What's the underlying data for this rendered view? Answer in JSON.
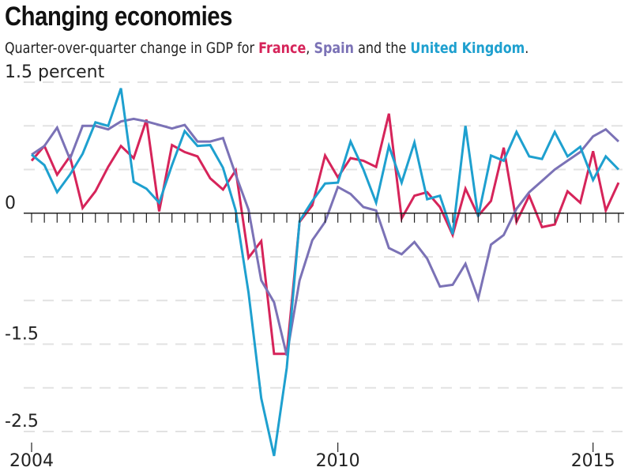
{
  "title": "Changing economies",
  "subtitle": {
    "prefix": "Quarter-over-quarter change in GDP for ",
    "france": "France",
    "sep1": ", ",
    "spain": "Spain",
    "mid": " and the ",
    "uk": "United Kingdom",
    "suffix": "."
  },
  "colors": {
    "france": "#d6245a",
    "spain": "#7b72b6",
    "uk": "#1ea0cf",
    "grid": "#e2e2e2",
    "axis": "#222222"
  },
  "chart_data": {
    "type": "line",
    "title": "Changing economies",
    "ylabel": "percent",
    "ylim": [
      -2.5,
      1.5
    ],
    "yticks": [
      {
        "value": 1.5,
        "label": "1.5 percent"
      },
      {
        "value": 0,
        "label": "0"
      },
      {
        "value": -1.5,
        "label": "-1.5"
      },
      {
        "value": -2.5,
        "label": "-2.5"
      }
    ],
    "grid_dashed_at": [
      1.0,
      0.5,
      -0.5,
      -1.0,
      -2.0
    ],
    "xlim": [
      2004.0,
      2015.5
    ],
    "xticks": [
      {
        "value": 2004,
        "label": "2004"
      },
      {
        "value": 2010,
        "label": "2010"
      },
      {
        "value": 2015,
        "label": "2015"
      }
    ],
    "x_start": 2004.0,
    "x_step": 0.25,
    "series": [
      {
        "name": "France",
        "color": "#d6245a",
        "values": [
          0.6,
          0.77,
          0.44,
          0.65,
          0.06,
          0.25,
          0.53,
          0.77,
          0.63,
          1.07,
          0.02,
          0.78,
          0.7,
          0.65,
          0.4,
          0.27,
          0.49,
          -0.51,
          -0.32,
          -1.61,
          -1.61,
          -0.1,
          0.09,
          0.66,
          0.41,
          0.63,
          0.6,
          0.53,
          1.14,
          -0.06,
          0.2,
          0.24,
          0.07,
          -0.25,
          0.28,
          -0.03,
          0.14,
          0.75,
          -0.1,
          0.2,
          -0.16,
          -0.13,
          0.25,
          0.12,
          0.71,
          0.03,
          0.35
        ]
      },
      {
        "name": "Spain",
        "color": "#7b72b6",
        "values": [
          0.67,
          0.77,
          0.98,
          0.62,
          1.0,
          1.0,
          0.96,
          1.05,
          1.08,
          1.05,
          1.01,
          0.97,
          1.01,
          0.82,
          0.82,
          0.86,
          0.44,
          0.04,
          -0.77,
          -1.02,
          -1.63,
          -0.77,
          -0.31,
          -0.1,
          0.3,
          0.22,
          0.07,
          0.03,
          -0.4,
          -0.47,
          -0.33,
          -0.52,
          -0.84,
          -0.82,
          -0.58,
          -0.98,
          -0.36,
          -0.25,
          0.05,
          0.24,
          0.37,
          0.5,
          0.6,
          0.7,
          0.88,
          0.96,
          0.82
        ]
      },
      {
        "name": "United Kingdom",
        "color": "#1ea0cf",
        "values": [
          0.67,
          0.55,
          0.24,
          0.44,
          0.68,
          1.04,
          1.0,
          1.43,
          0.36,
          0.28,
          0.12,
          0.55,
          0.94,
          0.77,
          0.78,
          0.52,
          0.03,
          -0.91,
          -2.12,
          -2.78,
          -1.77,
          -0.09,
          0.14,
          0.34,
          0.35,
          0.82,
          0.5,
          0.12,
          0.77,
          0.35,
          0.81,
          0.16,
          0.2,
          -0.24,
          1.0,
          -0.04,
          0.66,
          0.6,
          0.93,
          0.65,
          0.62,
          0.93,
          0.65,
          0.76,
          0.38,
          0.65,
          0.5
        ]
      }
    ]
  }
}
